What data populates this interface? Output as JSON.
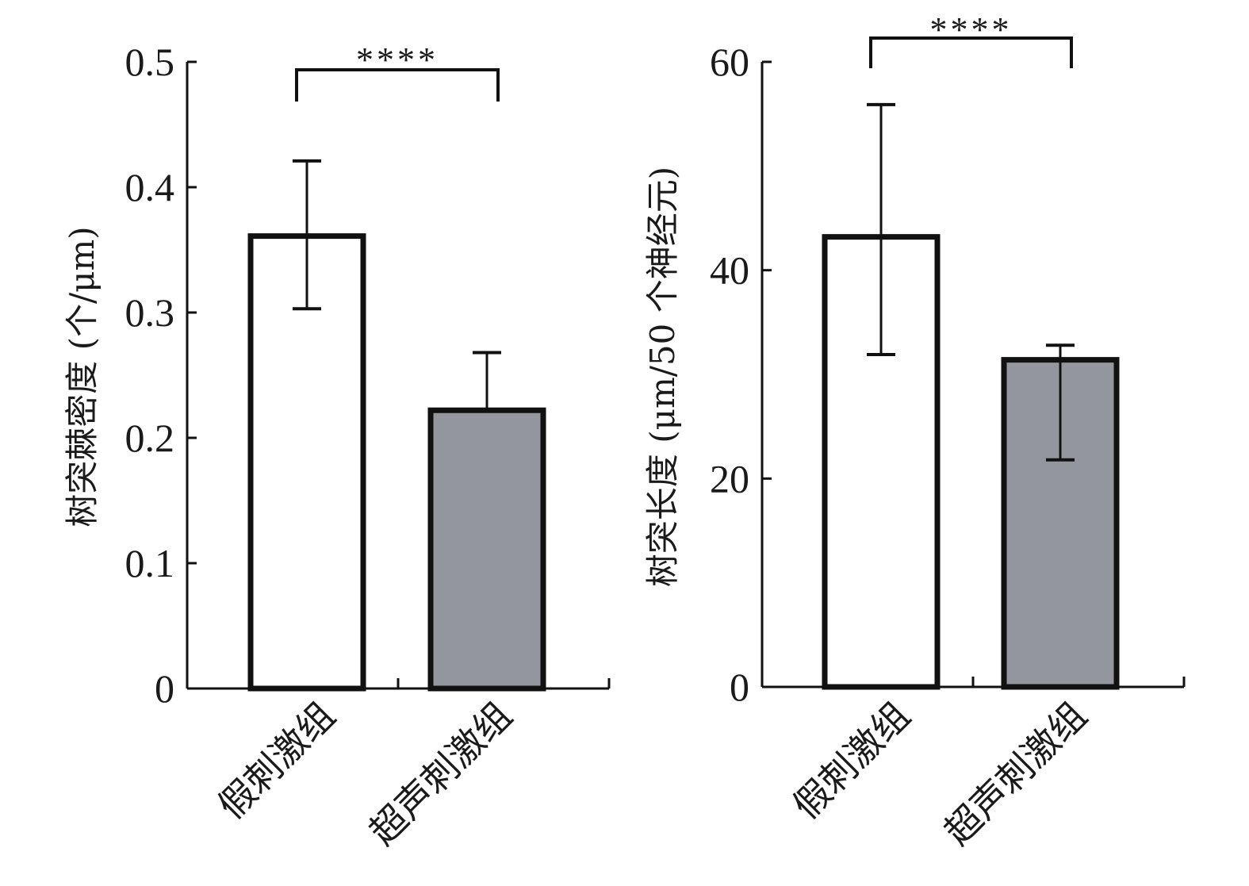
{
  "chart_data": [
    {
      "type": "bar",
      "title": "",
      "xlabel": "",
      "ylabel": "树突棘密度 (个/μm)",
      "ylim": [
        0,
        0.5
      ],
      "yticks": [
        0,
        0.1,
        0.2,
        0.3,
        0.4,
        0.5
      ],
      "ytick_labels": [
        "0",
        "0.1",
        "0.2",
        "0.3",
        "0.4",
        "0.5"
      ],
      "categories": [
        "假刺激组",
        "超声刺激组"
      ],
      "values": [
        0.361,
        0.222
      ],
      "error_upper": [
        0.421,
        0.268
      ],
      "error_lower": [
        0.303,
        null
      ],
      "bar_colors": [
        "#ffffff",
        "#94969d"
      ],
      "significance": {
        "from": 0,
        "to": 1,
        "label": "****"
      },
      "grid": false
    },
    {
      "type": "bar",
      "title": "",
      "xlabel": "",
      "ylabel": "树突长度 (μm/50 个神经元)",
      "ylim": [
        0,
        60
      ],
      "yticks": [
        0,
        20,
        40,
        60
      ],
      "ytick_labels": [
        "0",
        "20",
        "40",
        "60"
      ],
      "categories": [
        "假刺激组",
        "超声刺激组"
      ],
      "values": [
        43.2,
        31.4
      ],
      "error_upper": [
        55.9,
        32.8
      ],
      "error_lower": [
        31.9,
        21.8
      ],
      "bar_colors": [
        "#ffffff",
        "#94969d"
      ],
      "significance": {
        "from": 0,
        "to": 1,
        "label": "****"
      },
      "grid": false
    }
  ]
}
